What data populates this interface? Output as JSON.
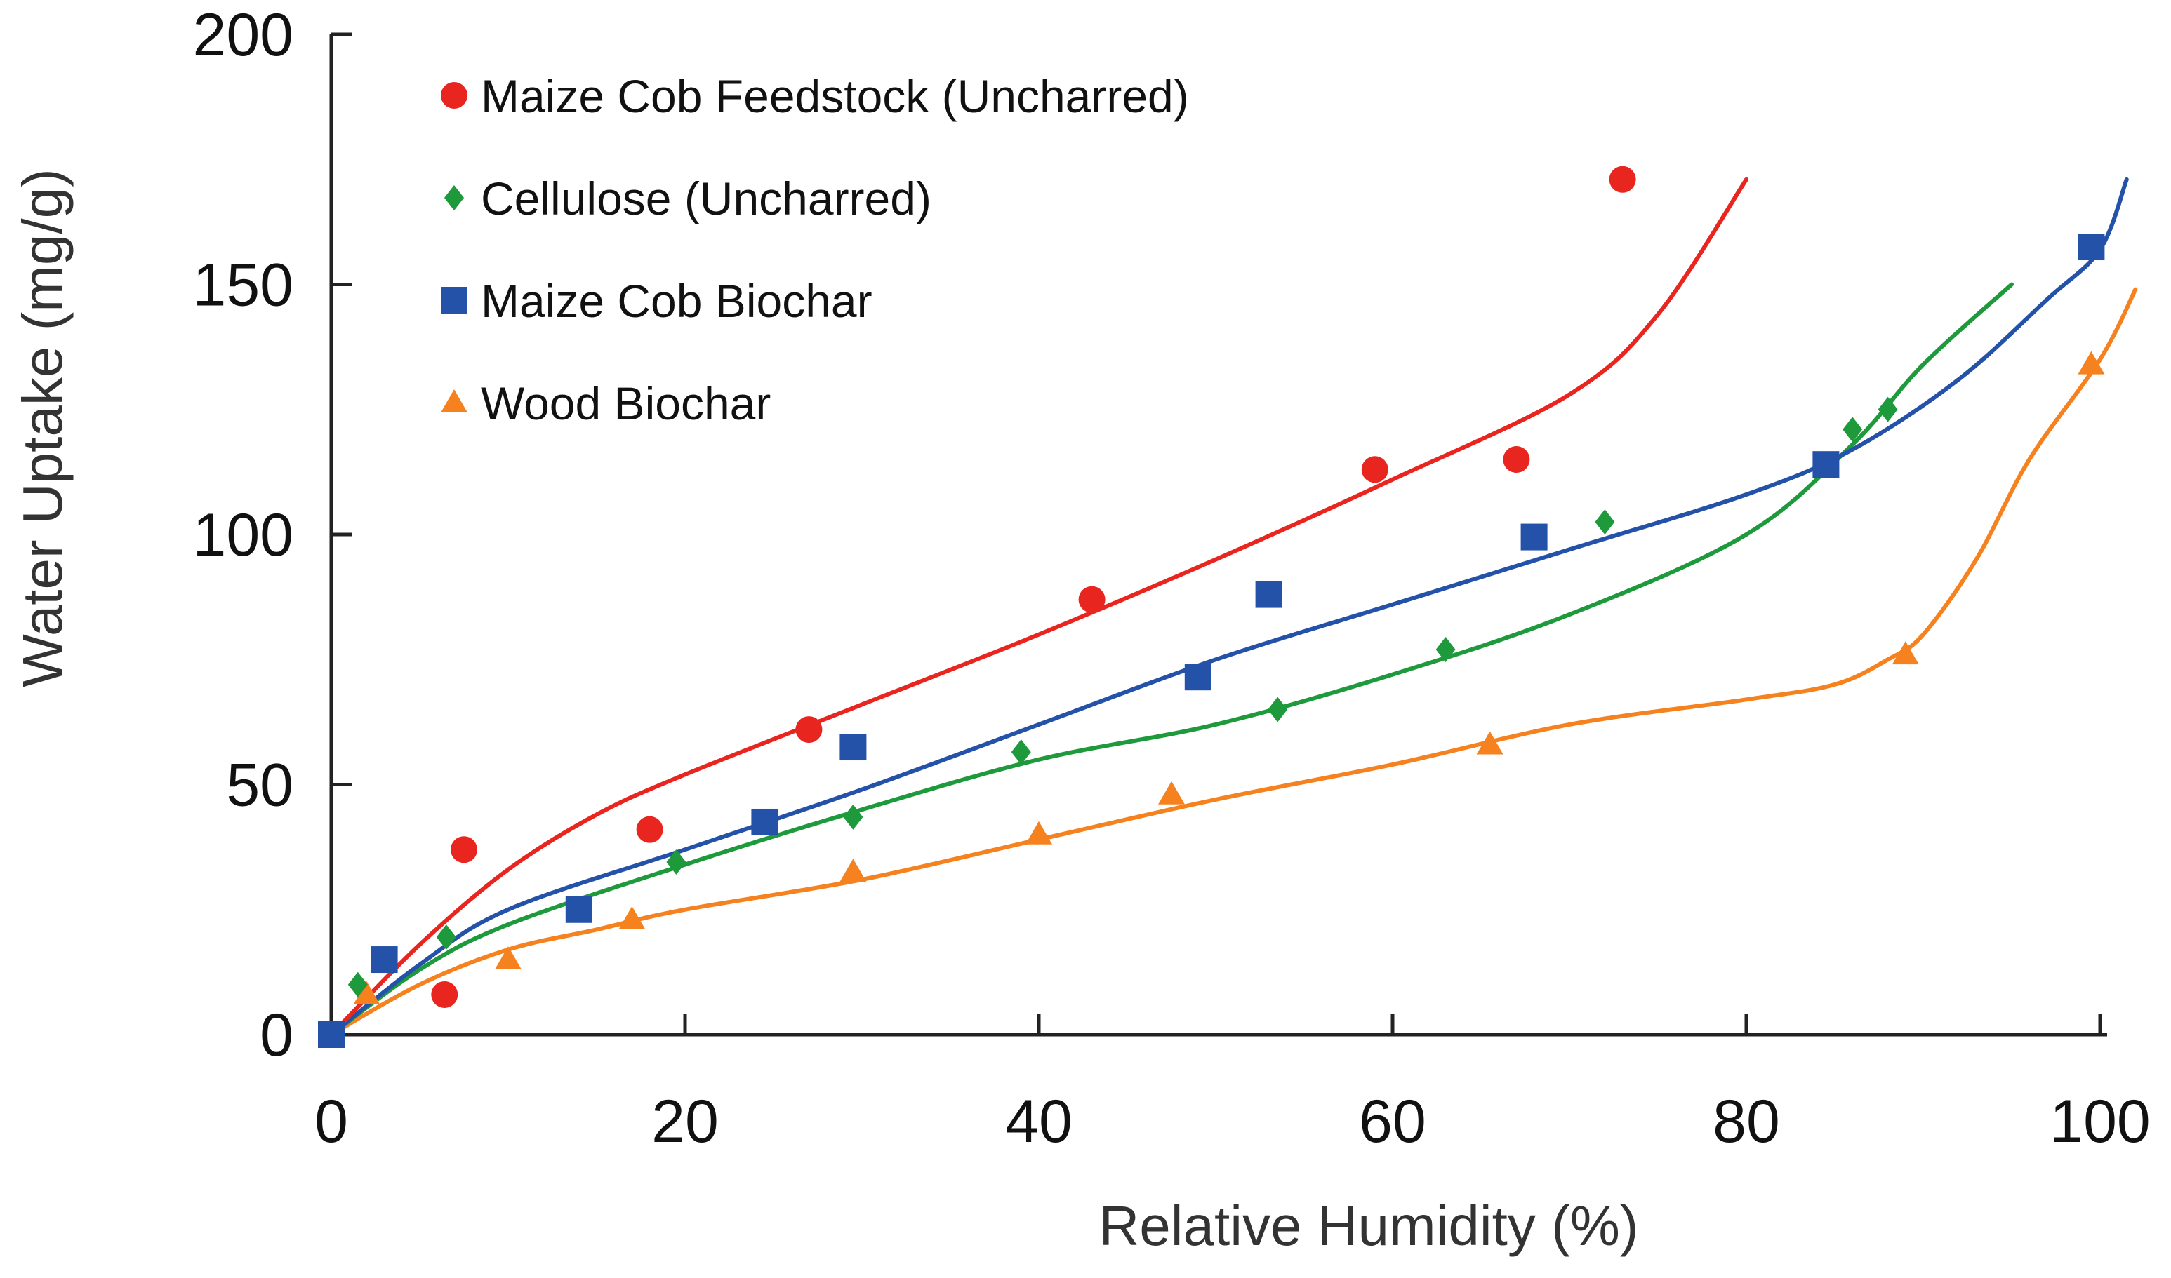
{
  "chart_data": {
    "type": "scatter",
    "title": "",
    "xlabel": "Relative Humidity (%)",
    "ylabel": "Water Uptake (mg/g)",
    "xlim": [
      0,
      100
    ],
    "ylim": [
      0,
      200
    ],
    "xticks": [
      0,
      20,
      40,
      60,
      80,
      100
    ],
    "yticks": [
      0,
      50,
      100,
      150,
      200
    ],
    "xtick_labels": [
      "0",
      "20",
      "40",
      "60",
      "80",
      "100"
    ],
    "ytick_labels": [
      "0",
      "50",
      "100",
      "150",
      "200"
    ],
    "grid": false,
    "legend_position": "top-left",
    "series": [
      {
        "name": "Maize Cob Feedstock (Uncharred)",
        "marker": "circle",
        "color": "#e8251f",
        "points": [
          [
            6.4,
            8
          ],
          [
            7.5,
            37
          ],
          [
            18,
            41
          ],
          [
            27,
            61
          ],
          [
            43,
            87
          ],
          [
            59,
            113
          ],
          [
            67,
            115
          ],
          [
            73,
            171
          ]
        ],
        "fit": [
          [
            0,
            0
          ],
          [
            5,
            18
          ],
          [
            10,
            33
          ],
          [
            15,
            44
          ],
          [
            20,
            52
          ],
          [
            30,
            66
          ],
          [
            40,
            80
          ],
          [
            50,
            95
          ],
          [
            60,
            111
          ],
          [
            70,
            128
          ],
          [
            75,
            144
          ],
          [
            80,
            171
          ]
        ]
      },
      {
        "name": "Cellulose  (Uncharred)",
        "marker": "diamond",
        "color": "#1e9a3c",
        "points": [
          [
            1.5,
            10
          ],
          [
            6.5,
            19.5
          ],
          [
            19.5,
            34.5
          ],
          [
            29.5,
            43.5
          ],
          [
            39,
            56.5
          ],
          [
            53.5,
            65
          ],
          [
            63,
            77
          ],
          [
            72,
            102.5
          ],
          [
            86,
            121
          ],
          [
            88,
            125
          ]
        ],
        "fit": [
          [
            0,
            0
          ],
          [
            5,
            13
          ],
          [
            10,
            22
          ],
          [
            20,
            34
          ],
          [
            30,
            45
          ],
          [
            40,
            55
          ],
          [
            50,
            62
          ],
          [
            60,
            72
          ],
          [
            70,
            84
          ],
          [
            80,
            100
          ],
          [
            86,
            118
          ],
          [
            90,
            134
          ],
          [
            95,
            150
          ]
        ]
      },
      {
        "name": "Maize Cob Biochar",
        "marker": "square",
        "color": "#2452a8",
        "points": [
          [
            0,
            0
          ],
          [
            3,
            15
          ],
          [
            14,
            25
          ],
          [
            24.5,
            42.5
          ],
          [
            29.5,
            57.5
          ],
          [
            49,
            71.5
          ],
          [
            53,
            88
          ],
          [
            68,
            99.5
          ],
          [
            84.5,
            114
          ],
          [
            99.5,
            157.5
          ]
        ],
        "fit": [
          [
            0,
            0
          ],
          [
            5,
            14
          ],
          [
            10,
            25
          ],
          [
            20,
            37
          ],
          [
            30,
            49
          ],
          [
            40,
            62
          ],
          [
            50,
            75
          ],
          [
            60,
            86
          ],
          [
            70,
            97
          ],
          [
            80,
            108
          ],
          [
            86,
            117
          ],
          [
            92,
            131
          ],
          [
            97,
            147
          ],
          [
            100,
            157
          ],
          [
            101.5,
            171
          ]
        ]
      },
      {
        "name": "Wood Biochar",
        "marker": "triangle",
        "color": "#f5821f",
        "points": [
          [
            2,
            8
          ],
          [
            10,
            15
          ],
          [
            17,
            23
          ],
          [
            29.5,
            32.5
          ],
          [
            40,
            40
          ],
          [
            47.5,
            48
          ],
          [
            65.5,
            58
          ],
          [
            89,
            76
          ],
          [
            99.5,
            134
          ]
        ],
        "fit": [
          [
            0,
            0
          ],
          [
            5,
            10
          ],
          [
            10,
            17
          ],
          [
            15,
            21
          ],
          [
            20,
            25
          ],
          [
            30,
            31
          ],
          [
            40,
            39
          ],
          [
            50,
            47
          ],
          [
            60,
            54
          ],
          [
            70,
            62
          ],
          [
            80,
            67
          ],
          [
            85,
            70
          ],
          [
            88,
            75
          ],
          [
            90,
            80
          ],
          [
            93,
            95
          ],
          [
            96,
            115
          ],
          [
            100,
            135
          ],
          [
            102,
            149
          ]
        ]
      }
    ]
  }
}
